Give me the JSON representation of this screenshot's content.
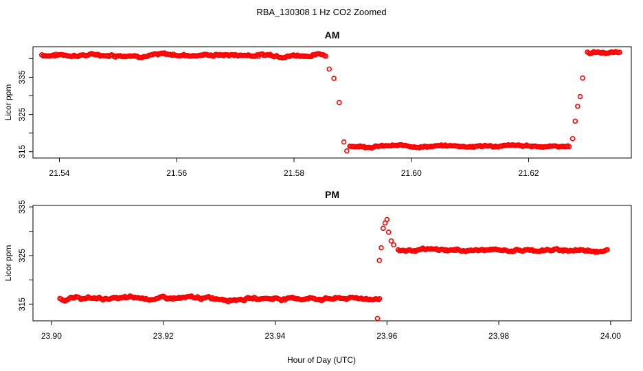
{
  "title": "RBA_130308  1 Hz CO2 Zoomed",
  "xlabel": "Hour of Day (UTC)",
  "colors": {
    "points": "#ff0000",
    "axes": "#000000",
    "background": "#ffffff"
  },
  "chart_data": [
    {
      "type": "scatter",
      "title": "AM",
      "xlabel": "",
      "ylabel": "Licor ppm",
      "xlim": [
        21.5355,
        21.6375
      ],
      "ylim": [
        313.3,
        343.2
      ],
      "xticks": [
        "21.54",
        "21.56",
        "21.58",
        "21.60",
        "21.62"
      ],
      "xtick_values": [
        21.54,
        21.56,
        21.58,
        21.6,
        21.62
      ],
      "yticks": [
        "315",
        "325",
        "335"
      ],
      "ytick_values": [
        315,
        325,
        335
      ],
      "y_minor_ticks": [
        320,
        330,
        340
      ],
      "grid": false,
      "legend": "none",
      "marker": "open-circle",
      "segments": [
        {
          "x_start": 21.537,
          "x_end": 21.5855,
          "base": 341.0,
          "noise": 0.45
        },
        {
          "x_start": 21.586,
          "x_end": 21.5868,
          "values": [
            337.2,
            334.7
          ]
        },
        {
          "x_start": 21.5877,
          "x_end": 21.588,
          "values": [
            328.2
          ]
        },
        {
          "x_start": 21.5885,
          "x_end": 21.589,
          "values": [
            317.6,
            315.2
          ]
        },
        {
          "x_start": 21.5895,
          "x_end": 21.627,
          "base": 316.5,
          "noise": 0.35
        },
        {
          "x_start": 21.6275,
          "x_end": 21.6292,
          "values": [
            318.5,
            323.2,
            327.2,
            329.8,
            334.8
          ]
        },
        {
          "x_start": 21.63,
          "x_end": 21.6355,
          "base": 341.6,
          "noise": 0.4
        }
      ]
    },
    {
      "type": "scatter",
      "title": "PM",
      "xlabel": "Hour of Day (UTC)",
      "ylabel": "Licor ppm",
      "xlim": [
        23.8967,
        24.0037
      ],
      "ylim": [
        311.6,
        335.3
      ],
      "xticks": [
        "23.90",
        "23.92",
        "23.94",
        "23.96",
        "23.98",
        "24.00"
      ],
      "xtick_values": [
        23.9,
        23.92,
        23.94,
        23.96,
        23.98,
        24.0
      ],
      "yticks": [
        "315",
        "325",
        "335"
      ],
      "ytick_values": [
        315,
        325,
        335
      ],
      "y_minor_ticks": [
        320,
        330
      ],
      "grid": false,
      "legend": "none",
      "marker": "open-circle",
      "segments": [
        {
          "x_start": 23.9015,
          "x_end": 23.9588,
          "base": 316.2,
          "noise": 0.35
        },
        {
          "x_start": 23.9583,
          "x_end": 23.96,
          "values": [
            312.1,
            324.0,
            326.6,
            330.6,
            331.7,
            332.4
          ]
        },
        {
          "x_start": 23.9603,
          "x_end": 23.9612,
          "values": [
            329.8,
            328.0,
            327.2
          ]
        },
        {
          "x_start": 23.962,
          "x_end": 23.9995,
          "base": 326.1,
          "noise": 0.3
        }
      ]
    }
  ]
}
